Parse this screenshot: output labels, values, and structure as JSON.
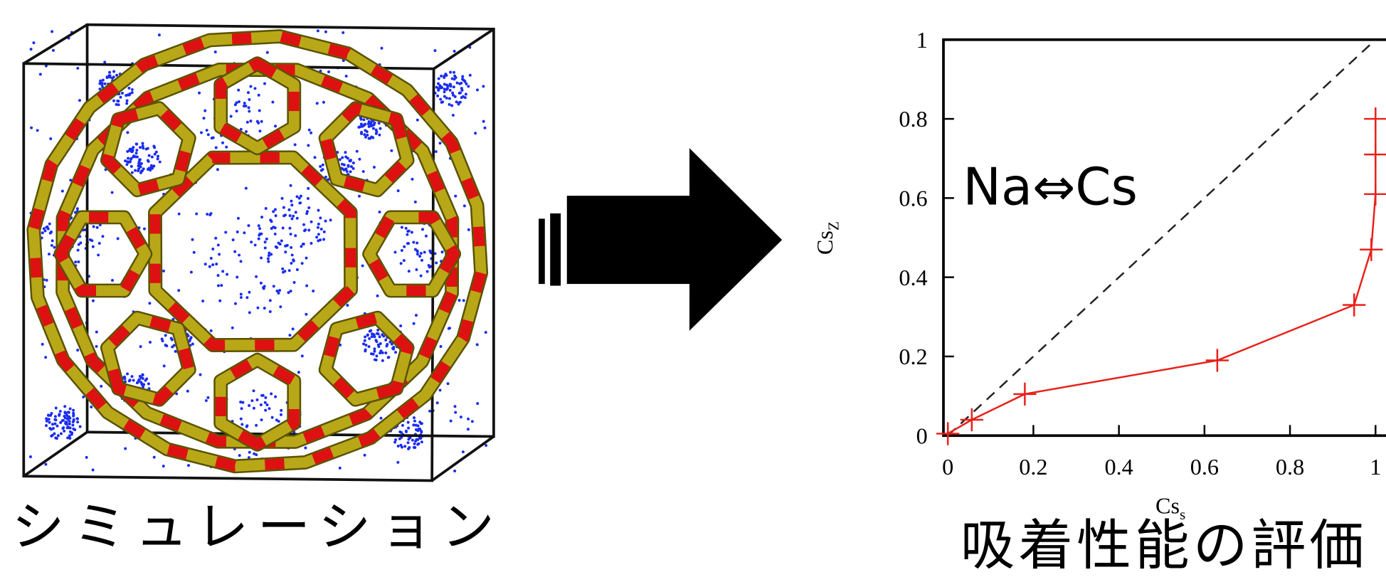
{
  "captions": {
    "left": "シミュレーション",
    "right": "吸着性能の評価"
  },
  "chart_data": {
    "type": "line",
    "annotation": "Na⇔Cs",
    "xlabel": "Cs",
    "xlabel_sub": "s",
    "ylabel": "Cs",
    "ylabel_sub": "Z",
    "x": [
      0,
      0.056,
      0.18,
      0.63,
      0.95,
      0.99,
      1,
      1,
      1
    ],
    "series": [
      {
        "color": "#e8201a",
        "values": [
          0.005,
          0.04,
          0.105,
          0.19,
          0.33,
          0.47,
          0.61,
          0.71,
          0.8
        ]
      }
    ],
    "xlim": [
      0,
      1
    ],
    "ylim": [
      0,
      1
    ],
    "xticks": [
      0,
      0.2,
      0.4,
      0.6,
      0.8,
      1
    ],
    "yticks": [
      0,
      0.2,
      0.4,
      0.6,
      0.8,
      1
    ],
    "diagonal": true
  }
}
